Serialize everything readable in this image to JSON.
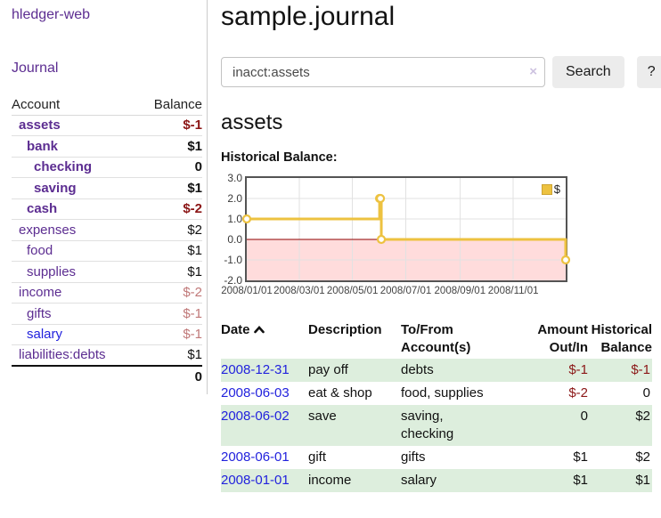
{
  "app": {
    "brand": "hledger-web",
    "nav": {
      "journal": "Journal"
    }
  },
  "sidebar": {
    "header": {
      "account": "Account",
      "balance": "Balance"
    },
    "accounts": [
      {
        "name": "assets",
        "balance": "$-1",
        "indent": 0,
        "bold": true,
        "neg": "strong",
        "blue": false
      },
      {
        "name": "bank",
        "balance": "$1",
        "indent": 1,
        "bold": true,
        "neg": "none",
        "blue": false
      },
      {
        "name": "checking",
        "balance": "0",
        "indent": 2,
        "bold": true,
        "neg": "none",
        "blue": false
      },
      {
        "name": "saving",
        "balance": "$1",
        "indent": 2,
        "bold": true,
        "neg": "none",
        "blue": false
      },
      {
        "name": "cash",
        "balance": "$-2",
        "indent": 1,
        "bold": true,
        "neg": "strong",
        "blue": false
      },
      {
        "name": "expenses",
        "balance": "$2",
        "indent": 0,
        "bold": false,
        "neg": "none",
        "blue": false
      },
      {
        "name": "food",
        "balance": "$1",
        "indent": 1,
        "bold": false,
        "neg": "none",
        "blue": false
      },
      {
        "name": "supplies",
        "balance": "$1",
        "indent": 1,
        "bold": false,
        "neg": "none",
        "blue": false
      },
      {
        "name": "income",
        "balance": "$-2",
        "indent": 0,
        "bold": false,
        "neg": "soft",
        "blue": false
      },
      {
        "name": "gifts",
        "balance": "$-1",
        "indent": 1,
        "bold": false,
        "neg": "soft",
        "blue": false
      },
      {
        "name": "salary",
        "balance": "$-1",
        "indent": 1,
        "bold": false,
        "neg": "soft",
        "blue": true
      },
      {
        "name": "liabilities:debts",
        "balance": "$1",
        "indent": 0,
        "bold": false,
        "neg": "none",
        "blue": false
      }
    ],
    "total": "0"
  },
  "header": {
    "title": "sample.journal"
  },
  "search": {
    "value": "inacct:assets",
    "clear": "×",
    "button": "Search",
    "help": "?"
  },
  "account_page": {
    "title": "assets",
    "chart_label": "Historical Balance:"
  },
  "chart_data": {
    "type": "line",
    "title": "Historical Balance",
    "series": [
      {
        "name": "$",
        "color": "#edc240",
        "points": [
          [
            "2008-01-01",
            1
          ],
          [
            "2008-06-01",
            2
          ],
          [
            "2008-06-02",
            2
          ],
          [
            "2008-06-03",
            0
          ],
          [
            "2008-12-31",
            -1
          ]
        ]
      }
    ],
    "step": true,
    "xrange": [
      "2008-01-01",
      "2008-12-31"
    ],
    "ylim": [
      -2,
      3
    ],
    "yticks": [
      {
        "v": 3,
        "label": "3.0"
      },
      {
        "v": 2,
        "label": "2.0"
      },
      {
        "v": 1,
        "label": "1.0"
      },
      {
        "v": 0,
        "label": "0.0"
      },
      {
        "v": -1,
        "label": "-1.0"
      },
      {
        "v": -2,
        "label": "-2.0"
      }
    ],
    "xticks": [
      {
        "d": "2008-01-01",
        "label": "2008/01/01"
      },
      {
        "d": "2008-03-01",
        "label": "2008/03/01"
      },
      {
        "d": "2008-05-01",
        "label": "2008/05/01"
      },
      {
        "d": "2008-07-01",
        "label": "2008/07/01"
      },
      {
        "d": "2008-09-01",
        "label": "2008/09/01"
      },
      {
        "d": "2008-11-01",
        "label": "2008/11/01"
      }
    ],
    "grid": true,
    "negative_region_color": "#ffdcdc",
    "zero_line_color": "#8f0000",
    "legend": {
      "position": "top-right",
      "entries": [
        {
          "label": "$",
          "color": "#edc240"
        }
      ]
    }
  },
  "register": {
    "columns": {
      "date": "Date",
      "description": "Description",
      "account_line1": "To/From",
      "account_line2": "Account(s)",
      "amount_line1": "Amount",
      "amount_line2": "Out/In",
      "balance_line1": "Historical",
      "balance_line2": "Balance"
    },
    "rows": [
      {
        "date": "2008-12-31",
        "description": "pay off",
        "accounts": "debts",
        "amount": "$-1",
        "amount_neg": true,
        "balance": "$-1",
        "balance_neg": true
      },
      {
        "date": "2008-06-03",
        "description": "eat & shop",
        "accounts": "food, supplies",
        "amount": "$-2",
        "amount_neg": true,
        "balance": "0",
        "balance_neg": false
      },
      {
        "date": "2008-06-02",
        "description": "save",
        "accounts": "saving, checking",
        "amount": "0",
        "amount_neg": false,
        "balance": "$2",
        "balance_neg": false
      },
      {
        "date": "2008-06-01",
        "description": "gift",
        "accounts": "gifts",
        "amount": "$1",
        "amount_neg": false,
        "balance": "$2",
        "balance_neg": false
      },
      {
        "date": "2008-01-01",
        "description": "income",
        "accounts": "salary",
        "amount": "$1",
        "amount_neg": false,
        "balance": "$1",
        "balance_neg": false
      }
    ]
  }
}
